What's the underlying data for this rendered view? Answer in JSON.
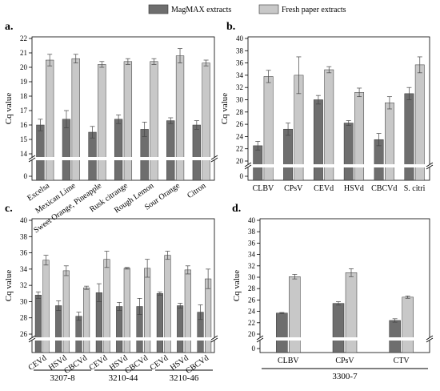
{
  "legend": {
    "items": [
      {
        "label": "MagMAX extracts",
        "color": "#6e6e6e"
      },
      {
        "label": "Fresh paper extracts",
        "color": "#c8c8c8"
      }
    ],
    "placement": "top-center"
  },
  "chart_data": [
    {
      "id": "a",
      "panel_label": "a.",
      "type": "bar",
      "ylabel": "Cq value",
      "ylim_display": [
        14,
        22
      ],
      "yticks": [
        14,
        15,
        16,
        17,
        18,
        19,
        20,
        21,
        22
      ],
      "y_axis_break": true,
      "categories": [
        "Excelsa",
        "Mexican Lime",
        "Sweet Orange, Pineapple",
        "Rusk citrange",
        "Rough Lemon",
        "Sour Orange",
        "Citron"
      ],
      "series": [
        {
          "name": "MagMAX extracts",
          "values": [
            16.0,
            16.4,
            15.5,
            16.4,
            15.7,
            16.3,
            16.0
          ],
          "errors": [
            0.4,
            0.6,
            0.4,
            0.3,
            0.5,
            0.2,
            0.3
          ]
        },
        {
          "name": "Fresh paper extracts",
          "values": [
            20.5,
            20.6,
            20.2,
            20.4,
            20.4,
            20.8,
            20.3
          ],
          "errors": [
            0.4,
            0.3,
            0.2,
            0.2,
            0.2,
            0.5,
            0.2
          ]
        }
      ]
    },
    {
      "id": "b",
      "panel_label": "b.",
      "type": "bar",
      "ylabel": "Cq value",
      "ylim_display": [
        20,
        40
      ],
      "yticks": [
        20,
        22,
        24,
        26,
        28,
        30,
        32,
        34,
        36,
        38,
        40
      ],
      "y_axis_break": true,
      "categories": [
        "CLBV",
        "CPsV",
        "CEVd",
        "HSVd",
        "CBCVd",
        "S. citri"
      ],
      "series": [
        {
          "name": "MagMAX extracts",
          "values": [
            22.5,
            25.2,
            30.0,
            26.2,
            23.5,
            31.0
          ],
          "errors": [
            0.7,
            1.0,
            0.7,
            0.4,
            1.0,
            1.0
          ]
        },
        {
          "name": "Fresh paper extracts",
          "values": [
            33.8,
            34.0,
            34.9,
            31.2,
            29.5,
            35.7
          ],
          "errors": [
            1.0,
            3.0,
            0.5,
            0.7,
            1.0,
            1.3
          ]
        }
      ]
    },
    {
      "id": "c",
      "panel_label": "c.",
      "type": "bar",
      "ylabel": "Cq value",
      "ylim_display": [
        24,
        40
      ],
      "yticks": [
        26,
        28,
        30,
        32,
        34,
        36,
        38,
        40
      ],
      "y_axis_break": true,
      "categories": [
        "CEVd",
        "HSVd",
        "CBCVd",
        "CEVd",
        "HSVd",
        "CBCVd",
        "CEVd",
        "HSVd",
        "CBCVd"
      ],
      "groups": [
        {
          "label": "3207-8",
          "span": [
            0,
            2
          ]
        },
        {
          "label": "3210-44",
          "span": [
            3,
            5
          ]
        },
        {
          "label": "3210-46",
          "span": [
            6,
            8
          ]
        }
      ],
      "series": [
        {
          "name": "MagMAX extracts",
          "values": [
            30.8,
            29.5,
            28.2,
            31.1,
            29.4,
            29.4,
            31.0,
            29.5,
            28.7
          ],
          "errors": [
            0.4,
            0.6,
            0.5,
            1.1,
            0.5,
            1.0,
            0.2,
            0.3,
            0.9
          ]
        },
        {
          "name": "Fresh paper extracts",
          "values": [
            35.1,
            33.8,
            31.7,
            35.2,
            34.1,
            34.1,
            35.7,
            33.9,
            32.8
          ],
          "errors": [
            0.6,
            0.6,
            0.2,
            1.0,
            0.1,
            1.1,
            0.5,
            0.5,
            1.2
          ]
        }
      ]
    },
    {
      "id": "d",
      "panel_label": "d.",
      "type": "bar",
      "ylabel": "Cq value",
      "ylim_display": [
        20,
        40
      ],
      "yticks": [
        20,
        22,
        24,
        26,
        28,
        30,
        32,
        34,
        36,
        38,
        40
      ],
      "y_axis_break": true,
      "categories": [
        "CLBV",
        "CPsV",
        "CTV"
      ],
      "groups": [
        {
          "label": "3300-7",
          "span": [
            0,
            2
          ]
        }
      ],
      "series": [
        {
          "name": "MagMAX extracts",
          "values": [
            23.7,
            25.4,
            22.4
          ],
          "errors": [
            0.1,
            0.3,
            0.3
          ]
        },
        {
          "name": "Fresh paper extracts",
          "values": [
            30.1,
            30.8,
            26.5
          ],
          "errors": [
            0.4,
            0.7,
            0.2
          ]
        }
      ]
    }
  ]
}
